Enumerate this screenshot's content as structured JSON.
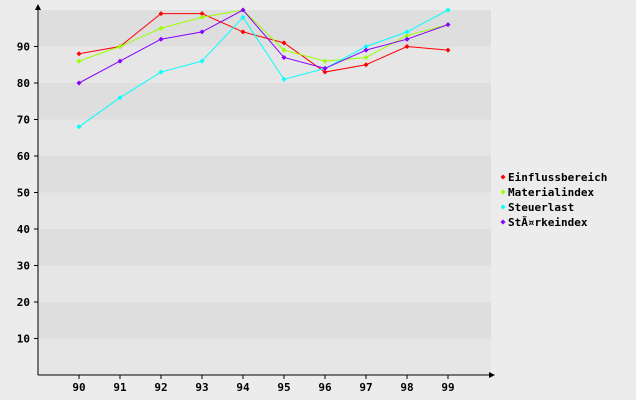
{
  "chart_data": {
    "type": "line",
    "x": [
      "90",
      "91",
      "92",
      "93",
      "94",
      "95",
      "96",
      "97",
      "98",
      "99"
    ],
    "ylim": [
      0,
      100
    ],
    "yticks": [
      10,
      20,
      30,
      40,
      50,
      60,
      70,
      80,
      90
    ],
    "grid": "alternating horizontal bands",
    "legend": "right",
    "series": [
      {
        "name": "Einflussbereich",
        "color": "#ff0000",
        "values": [
          88,
          90,
          99,
          99,
          94,
          91,
          83,
          85,
          90,
          89
        ]
      },
      {
        "name": "Materialindex",
        "color": "#99ff00",
        "values": [
          86,
          90,
          95,
          98,
          100,
          89,
          86,
          87,
          93,
          96
        ]
      },
      {
        "name": "Steuerlast",
        "color": "#00ffff",
        "values": [
          68,
          76,
          83,
          86,
          98,
          81,
          84,
          90,
          94,
          100
        ]
      },
      {
        "name": "StÃ¤rkeindex",
        "color": "#8800ff",
        "values": [
          80,
          86,
          92,
          94,
          100,
          87,
          84,
          89,
          92,
          96
        ]
      }
    ]
  }
}
